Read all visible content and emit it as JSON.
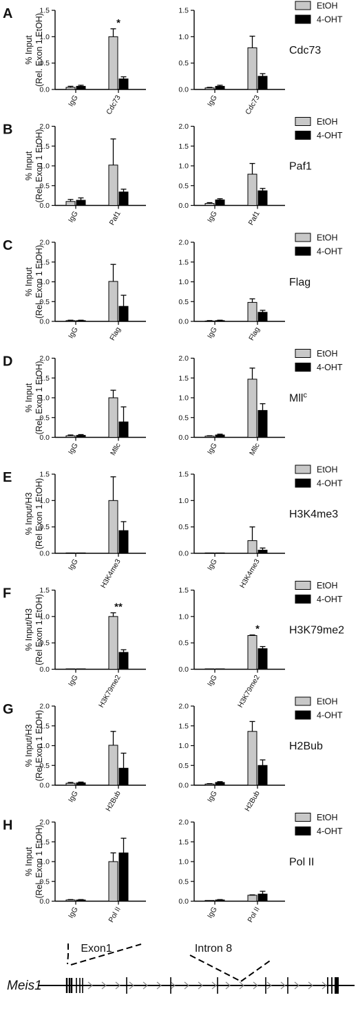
{
  "legend": {
    "etoh": "EtOH",
    "ohtam": "4-OHT"
  },
  "colors": {
    "etoh": "#c8c8c8",
    "ohtam": "#000000"
  },
  "chart_data": [
    {
      "type": "bar",
      "panel": "A",
      "target": "Cdc73",
      "ylabel": [
        "% Input",
        "(Rel. Exon 1 EtOH)"
      ],
      "left": {
        "ylim": [
          0,
          1.5
        ],
        "yticks": [
          "0.0",
          "0.5",
          "1.0",
          "1.5"
        ],
        "categories": [
          "IgG",
          "Cdc73"
        ],
        "series": [
          {
            "name": "EtOH",
            "values": [
              0.04,
              1.0
            ],
            "errors": [
              0.02,
              0.15
            ]
          },
          {
            "name": "4-OHT",
            "values": [
              0.06,
              0.2
            ],
            "errors": [
              0.02,
              0.04
            ]
          }
        ],
        "annotations": [
          {
            "category": 1,
            "text": "*"
          }
        ]
      },
      "right": {
        "ylim": [
          0,
          1.5
        ],
        "yticks": [
          "0.0",
          "0.5",
          "1.0",
          "1.5"
        ],
        "categories": [
          "IgG",
          "Cdc73"
        ],
        "series": [
          {
            "name": "EtOH",
            "values": [
              0.03,
              0.79
            ],
            "errors": [
              0.01,
              0.22
            ]
          },
          {
            "name": "4-OHT",
            "values": [
              0.06,
              0.25
            ],
            "errors": [
              0.02,
              0.05
            ]
          }
        ],
        "annotations": []
      }
    },
    {
      "type": "bar",
      "panel": "B",
      "target": "Paf1",
      "ylabel": [
        "% Input",
        "(Rel. Exon 1 EtOH)"
      ],
      "left": {
        "ylim": [
          0,
          2.0
        ],
        "yticks": [
          "0.0",
          "0.5",
          "1.0",
          "1.5",
          "2.0"
        ],
        "categories": [
          "IgG",
          "Paf1"
        ],
        "series": [
          {
            "name": "EtOH",
            "values": [
              0.1,
              1.02
            ],
            "errors": [
              0.05,
              0.66
            ]
          },
          {
            "name": "4-OHT",
            "values": [
              0.13,
              0.34
            ],
            "errors": [
              0.06,
              0.07
            ]
          }
        ],
        "annotations": []
      },
      "right": {
        "ylim": [
          0,
          2.0
        ],
        "yticks": [
          "0.0",
          "0.5",
          "1.0",
          "1.5",
          "2.0"
        ],
        "categories": [
          "IgG",
          "Paf1"
        ],
        "series": [
          {
            "name": "EtOH",
            "values": [
              0.05,
              0.79
            ],
            "errors": [
              0.02,
              0.27
            ]
          },
          {
            "name": "4-OHT",
            "values": [
              0.14,
              0.37
            ],
            "errors": [
              0.03,
              0.06
            ]
          }
        ],
        "annotations": []
      }
    },
    {
      "type": "bar",
      "panel": "C",
      "target": "Flag",
      "ylabel": [
        "% Input",
        "(Rel. Exon 1 EtOH)"
      ],
      "left": {
        "ylim": [
          0,
          2.0
        ],
        "yticks": [
          "0.0",
          "0.5",
          "1.0",
          "1.5",
          "2.0"
        ],
        "categories": [
          "IgG",
          "Flag"
        ],
        "series": [
          {
            "name": "EtOH",
            "values": [
              0.02,
              1.01
            ],
            "errors": [
              0.01,
              0.43
            ]
          },
          {
            "name": "4-OHT",
            "values": [
              0.02,
              0.38
            ],
            "errors": [
              0.01,
              0.28
            ]
          }
        ],
        "annotations": []
      },
      "right": {
        "ylim": [
          0,
          2.0
        ],
        "yticks": [
          "0.0",
          "0.5",
          "1.0",
          "1.5",
          "2.0"
        ],
        "categories": [
          "IgG",
          "Flag"
        ],
        "series": [
          {
            "name": "EtOH",
            "values": [
              0.01,
              0.48
            ],
            "errors": [
              0.01,
              0.09
            ]
          },
          {
            "name": "4-OHT",
            "values": [
              0.02,
              0.23
            ],
            "errors": [
              0.01,
              0.05
            ]
          }
        ],
        "annotations": []
      }
    },
    {
      "type": "bar",
      "panel": "D",
      "target": "Mll",
      "target_sup": "c",
      "ylabel": [
        "% Input",
        "(Rel. Exon 1 EtOH)"
      ],
      "left": {
        "ylim": [
          0,
          2.0
        ],
        "yticks": [
          "0.0",
          "0.5",
          "1.0",
          "1.5",
          "2.0"
        ],
        "categories": [
          "IgG",
          "Mllc"
        ],
        "series": [
          {
            "name": "EtOH",
            "values": [
              0.04,
              1.0
            ],
            "errors": [
              0.02,
              0.19
            ]
          },
          {
            "name": "4-OHT",
            "values": [
              0.05,
              0.39
            ],
            "errors": [
              0.02,
              0.38
            ]
          }
        ],
        "annotations": []
      },
      "right": {
        "ylim": [
          0,
          2.0
        ],
        "yticks": [
          "0.0",
          "0.5",
          "1.0",
          "1.5",
          "2.0"
        ],
        "categories": [
          "IgG",
          "Mllc"
        ],
        "series": [
          {
            "name": "EtOH",
            "values": [
              0.03,
              1.47
            ],
            "errors": [
              0.01,
              0.28
            ]
          },
          {
            "name": "4-OHT",
            "values": [
              0.06,
              0.68
            ],
            "errors": [
              0.02,
              0.17
            ]
          }
        ],
        "annotations": []
      }
    },
    {
      "type": "bar",
      "panel": "E",
      "target": "H3K4me3",
      "ylabel": [
        "% Input/H3",
        "(Rel Exon 1 EtOH)"
      ],
      "left": {
        "ylim": [
          0,
          1.5
        ],
        "yticks": [
          "0.0",
          "0.5",
          "1.0",
          "1.5"
        ],
        "categories": [
          "IgG",
          "H3K4me3"
        ],
        "series": [
          {
            "name": "EtOH",
            "values": [
              0.0,
              1.0
            ],
            "errors": [
              0.0,
              0.45
            ]
          },
          {
            "name": "4-OHT",
            "values": [
              0.0,
              0.43
            ],
            "errors": [
              0.0,
              0.17
            ]
          }
        ],
        "annotations": []
      },
      "right": {
        "ylim": [
          0,
          1.5
        ],
        "yticks": [
          "0.0",
          "0.5",
          "1.0",
          "1.5"
        ],
        "categories": [
          "IgG",
          "H3K4me3"
        ],
        "series": [
          {
            "name": "EtOH",
            "values": [
              0.0,
              0.24
            ],
            "errors": [
              0.0,
              0.26
            ]
          },
          {
            "name": "4-OHT",
            "values": [
              0.0,
              0.06
            ],
            "errors": [
              0.0,
              0.04
            ]
          }
        ],
        "annotations": []
      }
    },
    {
      "type": "bar",
      "panel": "F",
      "target": "H3K79me2",
      "ylabel": [
        "% Input/H3",
        "(Rel Exon 1 EtOH)"
      ],
      "left": {
        "ylim": [
          0,
          1.5
        ],
        "yticks": [
          "0.0",
          "0.5",
          "1.0",
          "1.5"
        ],
        "categories": [
          "IgG",
          "H3K79me2"
        ],
        "series": [
          {
            "name": "EtOH",
            "values": [
              0.005,
              1.0
            ],
            "errors": [
              0.0,
              0.07
            ]
          },
          {
            "name": "4-OHT",
            "values": [
              0.005,
              0.32
            ],
            "errors": [
              0.0,
              0.05
            ]
          }
        ],
        "annotations": [
          {
            "category": 1,
            "text": "**"
          }
        ]
      },
      "right": {
        "ylim": [
          0,
          1.5
        ],
        "yticks": [
          "0.0",
          "0.5",
          "1.0",
          "1.5"
        ],
        "categories": [
          "IgG",
          "H3K79me2"
        ],
        "series": [
          {
            "name": "EtOH",
            "values": [
              0.0,
              0.64
            ],
            "errors": [
              0.0,
              0.01
            ]
          },
          {
            "name": "4-OHT",
            "values": [
              0.005,
              0.39
            ],
            "errors": [
              0.0,
              0.04
            ]
          }
        ],
        "annotations": [
          {
            "category": 1,
            "text": "*"
          }
        ]
      }
    },
    {
      "type": "bar",
      "panel": "G",
      "target": "H2Bub",
      "ylabel": [
        "% Input/H3",
        "(Rel Exon 1 EtOH)"
      ],
      "left": {
        "ylim": [
          0,
          2.0
        ],
        "yticks": [
          "0.0",
          "0.5",
          "1.0",
          "1.5",
          "2.0"
        ],
        "categories": [
          "IgG",
          "H2Bub"
        ],
        "series": [
          {
            "name": "EtOH",
            "values": [
              0.05,
              1.01
            ],
            "errors": [
              0.02,
              0.35
            ]
          },
          {
            "name": "4-OHT",
            "values": [
              0.06,
              0.43
            ],
            "errors": [
              0.02,
              0.38
            ]
          }
        ],
        "annotations": []
      },
      "right": {
        "ylim": [
          0,
          2.0
        ],
        "yticks": [
          "0.0",
          "0.5",
          "1.0",
          "1.5",
          "2.0"
        ],
        "categories": [
          "IgG",
          "H2Bub"
        ],
        "series": [
          {
            "name": "EtOH",
            "values": [
              0.03,
              1.36
            ],
            "errors": [
              0.01,
              0.25
            ]
          },
          {
            "name": "4-OHT",
            "values": [
              0.07,
              0.5
            ],
            "errors": [
              0.02,
              0.14
            ]
          }
        ],
        "annotations": []
      }
    },
    {
      "type": "bar",
      "panel": "H",
      "target": "Pol II",
      "ylabel": [
        "% Input",
        "(Rel. Exon 1 EtOH)"
      ],
      "left": {
        "ylim": [
          0,
          2.0
        ],
        "yticks": [
          "0.0",
          "0.5",
          "1.0",
          "1.5",
          "2.0"
        ],
        "categories": [
          "IgG",
          "Pol II"
        ],
        "series": [
          {
            "name": "EtOH",
            "values": [
              0.03,
              1.0
            ],
            "errors": [
              0.01,
              0.22
            ]
          },
          {
            "name": "4-OHT",
            "values": [
              0.03,
              1.22
            ],
            "errors": [
              0.01,
              0.37
            ]
          }
        ],
        "annotations": []
      },
      "right": {
        "ylim": [
          0,
          2.0
        ],
        "yticks": [
          "0.0",
          "0.5",
          "1.0",
          "1.5",
          "2.0"
        ],
        "categories": [
          "IgG",
          "Pol II"
        ],
        "series": [
          {
            "name": "EtOH",
            "values": [
              0.02,
              0.15
            ],
            "errors": [
              0.0,
              0.01
            ]
          },
          {
            "name": "4-OHT",
            "values": [
              0.03,
              0.18
            ],
            "errors": [
              0.01,
              0.07
            ]
          }
        ],
        "annotations": []
      }
    }
  ],
  "gene_diagram": {
    "gene": "Meis1",
    "region1": "Exon1",
    "region2": "Intron 8"
  }
}
